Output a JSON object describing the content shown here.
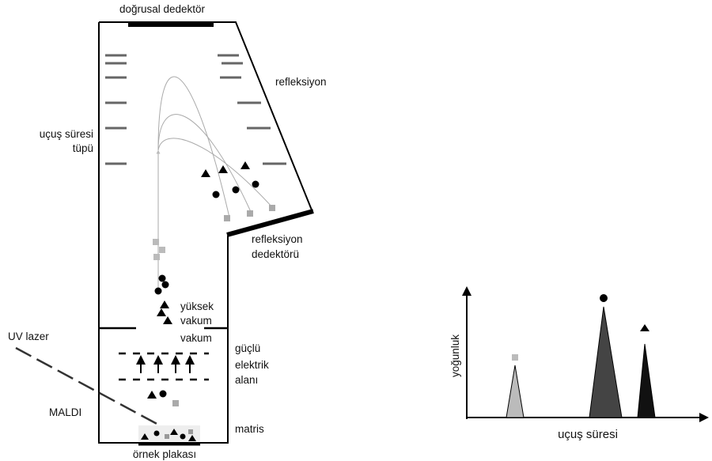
{
  "diagram": {
    "linear_detector": "doğrusal dedektör",
    "reflectron": "refleksiyon",
    "flight_tube": [
      "uçuş süresi",
      "tüpü"
    ],
    "reflectron_detector": [
      "refleksiyon",
      "dedektörü"
    ],
    "high_vacuum": [
      "yüksek",
      "vakum"
    ],
    "vacuum": "vakum",
    "electric_field": [
      "güçlü",
      "elektrik",
      "alanı"
    ],
    "uv_laser": "UV lazer",
    "maldi": "MALDI",
    "matrix": "matris",
    "sample_plate": "örnek plakası"
  },
  "spectrum": {
    "y_label": "yoğunluk",
    "x_label": "uçuş süresi"
  }
}
